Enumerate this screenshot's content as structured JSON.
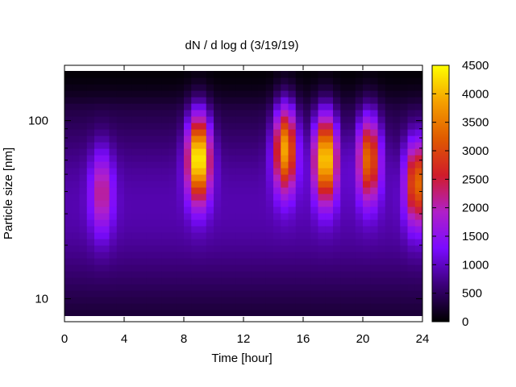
{
  "chart_data": {
    "type": "heatmap",
    "title": "dN / d log d (3/19/19)",
    "xlabel": "Time [hour]",
    "ylabel": "Particle size [nm]",
    "x_scale": "linear",
    "y_scale": "log",
    "xlim": [
      0,
      24
    ],
    "ylim": [
      8,
      190
    ],
    "x_ticks": [
      0,
      4,
      8,
      12,
      16,
      20,
      24
    ],
    "x_tick_labels": [
      "0",
      "4",
      "8",
      "12",
      "16",
      "20",
      "24"
    ],
    "y_ticks": [
      10,
      100
    ],
    "y_tick_labels": [
      "10",
      "100"
    ],
    "colorbar": {
      "min": 0,
      "max": 4500,
      "ticks": [
        0,
        500,
        1000,
        1500,
        2000,
        2500,
        3000,
        3500,
        4000,
        4500
      ],
      "tick_labels": [
        "0",
        "500",
        "1000",
        "1500",
        "2000",
        "2500",
        "3000",
        "3500",
        "4000",
        "4500"
      ],
      "colormap": [
        "#000000",
        "#3b0078",
        "#7a0bff",
        "#b020c8",
        "#d01c2a",
        "#e05a00",
        "#f5a000",
        "#ffff00"
      ]
    },
    "background_level": 900,
    "hotspots": [
      {
        "time": 2.5,
        "size": 40,
        "peak": 1700
      },
      {
        "time": 9.0,
        "size": 62,
        "peak": 4300
      },
      {
        "time": 14.8,
        "size": 70,
        "peak": 3500
      },
      {
        "time": 17.5,
        "size": 62,
        "peak": 4000
      },
      {
        "time": 20.4,
        "size": 62,
        "peak": 3000
      },
      {
        "time": 23.6,
        "size": 45,
        "peak": 2900
      }
    ]
  }
}
